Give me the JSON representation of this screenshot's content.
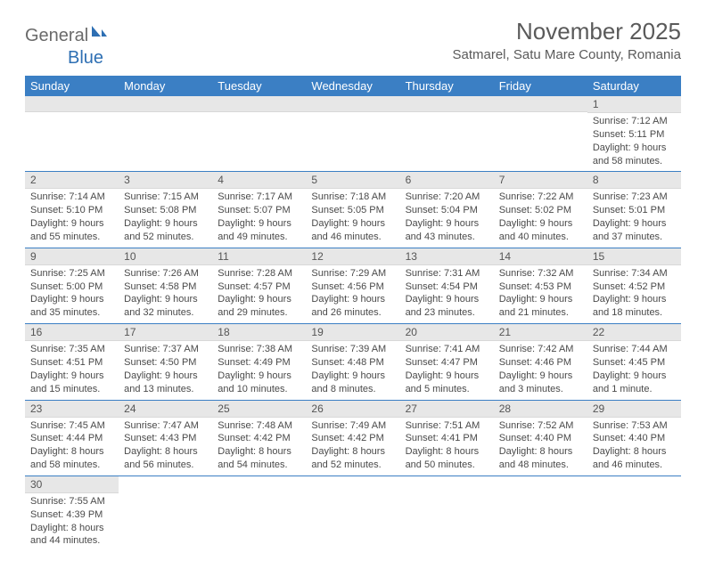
{
  "logo": {
    "general": "General",
    "blue": "Blue"
  },
  "title": "November 2025",
  "location": "Satmarel, Satu Mare County, Romania",
  "header_bg": "#3b7fc4",
  "days": [
    "Sunday",
    "Monday",
    "Tuesday",
    "Wednesday",
    "Thursday",
    "Friday",
    "Saturday"
  ],
  "weeks": [
    [
      null,
      null,
      null,
      null,
      null,
      null,
      {
        "n": "1",
        "sr": "7:12 AM",
        "ss": "5:11 PM",
        "dl": "9 hours and 58 minutes."
      }
    ],
    [
      {
        "n": "2",
        "sr": "7:14 AM",
        "ss": "5:10 PM",
        "dl": "9 hours and 55 minutes."
      },
      {
        "n": "3",
        "sr": "7:15 AM",
        "ss": "5:08 PM",
        "dl": "9 hours and 52 minutes."
      },
      {
        "n": "4",
        "sr": "7:17 AM",
        "ss": "5:07 PM",
        "dl": "9 hours and 49 minutes."
      },
      {
        "n": "5",
        "sr": "7:18 AM",
        "ss": "5:05 PM",
        "dl": "9 hours and 46 minutes."
      },
      {
        "n": "6",
        "sr": "7:20 AM",
        "ss": "5:04 PM",
        "dl": "9 hours and 43 minutes."
      },
      {
        "n": "7",
        "sr": "7:22 AM",
        "ss": "5:02 PM",
        "dl": "9 hours and 40 minutes."
      },
      {
        "n": "8",
        "sr": "7:23 AM",
        "ss": "5:01 PM",
        "dl": "9 hours and 37 minutes."
      }
    ],
    [
      {
        "n": "9",
        "sr": "7:25 AM",
        "ss": "5:00 PM",
        "dl": "9 hours and 35 minutes."
      },
      {
        "n": "10",
        "sr": "7:26 AM",
        "ss": "4:58 PM",
        "dl": "9 hours and 32 minutes."
      },
      {
        "n": "11",
        "sr": "7:28 AM",
        "ss": "4:57 PM",
        "dl": "9 hours and 29 minutes."
      },
      {
        "n": "12",
        "sr": "7:29 AM",
        "ss": "4:56 PM",
        "dl": "9 hours and 26 minutes."
      },
      {
        "n": "13",
        "sr": "7:31 AM",
        "ss": "4:54 PM",
        "dl": "9 hours and 23 minutes."
      },
      {
        "n": "14",
        "sr": "7:32 AM",
        "ss": "4:53 PM",
        "dl": "9 hours and 21 minutes."
      },
      {
        "n": "15",
        "sr": "7:34 AM",
        "ss": "4:52 PM",
        "dl": "9 hours and 18 minutes."
      }
    ],
    [
      {
        "n": "16",
        "sr": "7:35 AM",
        "ss": "4:51 PM",
        "dl": "9 hours and 15 minutes."
      },
      {
        "n": "17",
        "sr": "7:37 AM",
        "ss": "4:50 PM",
        "dl": "9 hours and 13 minutes."
      },
      {
        "n": "18",
        "sr": "7:38 AM",
        "ss": "4:49 PM",
        "dl": "9 hours and 10 minutes."
      },
      {
        "n": "19",
        "sr": "7:39 AM",
        "ss": "4:48 PM",
        "dl": "9 hours and 8 minutes."
      },
      {
        "n": "20",
        "sr": "7:41 AM",
        "ss": "4:47 PM",
        "dl": "9 hours and 5 minutes."
      },
      {
        "n": "21",
        "sr": "7:42 AM",
        "ss": "4:46 PM",
        "dl": "9 hours and 3 minutes."
      },
      {
        "n": "22",
        "sr": "7:44 AM",
        "ss": "4:45 PM",
        "dl": "9 hours and 1 minute."
      }
    ],
    [
      {
        "n": "23",
        "sr": "7:45 AM",
        "ss": "4:44 PM",
        "dl": "8 hours and 58 minutes."
      },
      {
        "n": "24",
        "sr": "7:47 AM",
        "ss": "4:43 PM",
        "dl": "8 hours and 56 minutes."
      },
      {
        "n": "25",
        "sr": "7:48 AM",
        "ss": "4:42 PM",
        "dl": "8 hours and 54 minutes."
      },
      {
        "n": "26",
        "sr": "7:49 AM",
        "ss": "4:42 PM",
        "dl": "8 hours and 52 minutes."
      },
      {
        "n": "27",
        "sr": "7:51 AM",
        "ss": "4:41 PM",
        "dl": "8 hours and 50 minutes."
      },
      {
        "n": "28",
        "sr": "7:52 AM",
        "ss": "4:40 PM",
        "dl": "8 hours and 48 minutes."
      },
      {
        "n": "29",
        "sr": "7:53 AM",
        "ss": "4:40 PM",
        "dl": "8 hours and 46 minutes."
      }
    ],
    [
      {
        "n": "30",
        "sr": "7:55 AM",
        "ss": "4:39 PM",
        "dl": "8 hours and 44 minutes."
      },
      null,
      null,
      null,
      null,
      null,
      null
    ]
  ],
  "labels": {
    "sunrise": "Sunrise: ",
    "sunset": "Sunset: ",
    "daylight": "Daylight: "
  }
}
